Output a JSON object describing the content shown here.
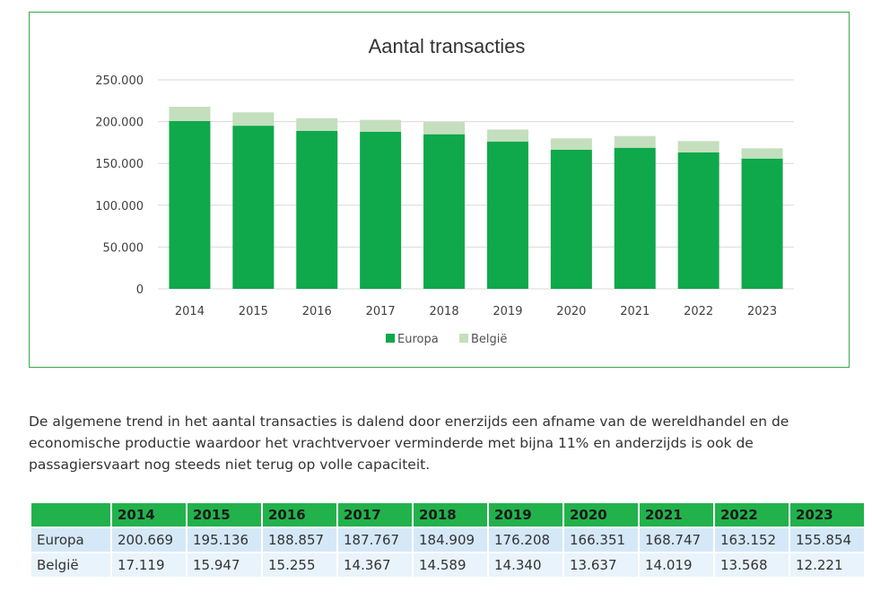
{
  "chart_data": {
    "type": "bar",
    "stacked": true,
    "title": "Aantal transacties",
    "xlabel": "",
    "ylabel": "",
    "categories": [
      "2014",
      "2015",
      "2016",
      "2017",
      "2018",
      "2019",
      "2020",
      "2021",
      "2022",
      "2023"
    ],
    "series": [
      {
        "name": "Europa",
        "color": "#0fa84a",
        "values": [
          200669,
          195136,
          188857,
          187767,
          184909,
          176208,
          166351,
          168747,
          163152,
          155854
        ]
      },
      {
        "name": "België",
        "color": "#c3dfbd",
        "values": [
          17119,
          15947,
          15255,
          14367,
          14589,
          14340,
          13637,
          14019,
          13568,
          12221
        ]
      }
    ],
    "ylim": [
      0,
      250000
    ],
    "yticks": [
      "0",
      "50.000",
      "100.000",
      "150.000",
      "200.000",
      "250.000"
    ],
    "ytick_values": [
      0,
      50000,
      100000,
      150000,
      200000,
      250000
    ],
    "grid": true,
    "legend_position": "bottom"
  },
  "paragraph": "De algemene trend in het aantal transacties is dalend door enerzijds een afname van de wereldhandel en de economische productie waardoor het vrachtvervoer verminderde met bijna 11% en anderzijds is ook de passagiersvaart nog steeds niet terug op volle capaciteit.",
  "table": {
    "corner": "",
    "headers": [
      "2014",
      "2015",
      "2016",
      "2017",
      "2018",
      "2019",
      "2020",
      "2021",
      "2022",
      "2023"
    ],
    "rows": [
      {
        "label": "Europa",
        "values": [
          "200.669",
          "195.136",
          "188.857",
          "187.767",
          "184.909",
          "176.208",
          "166.351",
          "168.747",
          "163.152",
          "155.854"
        ]
      },
      {
        "label": "België",
        "values": [
          "17.119",
          "15.947",
          "15.255",
          "14.367",
          "14.589",
          "14.340",
          "13.637",
          "14.019",
          "13.568",
          "12.221"
        ]
      }
    ],
    "header_color": "#22b24c"
  }
}
